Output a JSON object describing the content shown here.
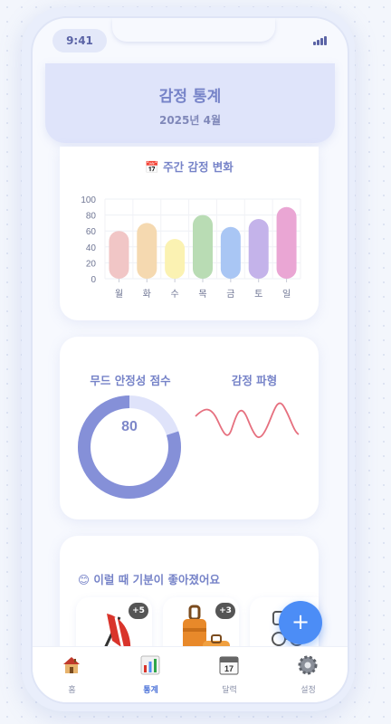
{
  "status": {
    "time": "9:41"
  },
  "header": {
    "title": "감정 통계",
    "subtitle": "2025년 4월"
  },
  "weekly": {
    "title": "📅 주간 감정 변화",
    "chart_data": {
      "type": "bar",
      "categories": [
        "월",
        "화",
        "수",
        "목",
        "금",
        "토",
        "일"
      ],
      "values": [
        60,
        70,
        50,
        80,
        65,
        75,
        90
      ],
      "colors": [
        "#f1c6c6",
        "#f5d9b0",
        "#fbf2b2",
        "#b9dcb4",
        "#a9c6f4",
        "#c4b3ea",
        "#eaa6d4"
      ],
      "ylim": [
        0,
        100
      ],
      "yticks": [
        0,
        20,
        40,
        60,
        80,
        100
      ],
      "grid": true
    }
  },
  "mood": {
    "title": "무드 안정성 점수",
    "score": "80",
    "score_fraction": 0.8,
    "color": "#8590d8"
  },
  "wave": {
    "title": "감정 파형",
    "color": "#e6707f"
  },
  "better": {
    "title": "😊 이럴 때 기분이 좋아졌어요",
    "items": [
      {
        "icon": "beach-chair-icon",
        "badge": "+5"
      },
      {
        "icon": "luggage-icon",
        "badge": "+3"
      },
      {
        "icon": "glasses-icon",
        "badge": ""
      }
    ]
  },
  "fab": {
    "label": "+"
  },
  "tabs": [
    {
      "label": "홈",
      "icon": "house-icon",
      "active": false
    },
    {
      "label": "통계",
      "icon": "bar-chart-icon",
      "active": true
    },
    {
      "label": "달력",
      "icon": "calendar-icon",
      "active": false
    },
    {
      "label": "설정",
      "icon": "gear-icon",
      "active": false
    }
  ]
}
